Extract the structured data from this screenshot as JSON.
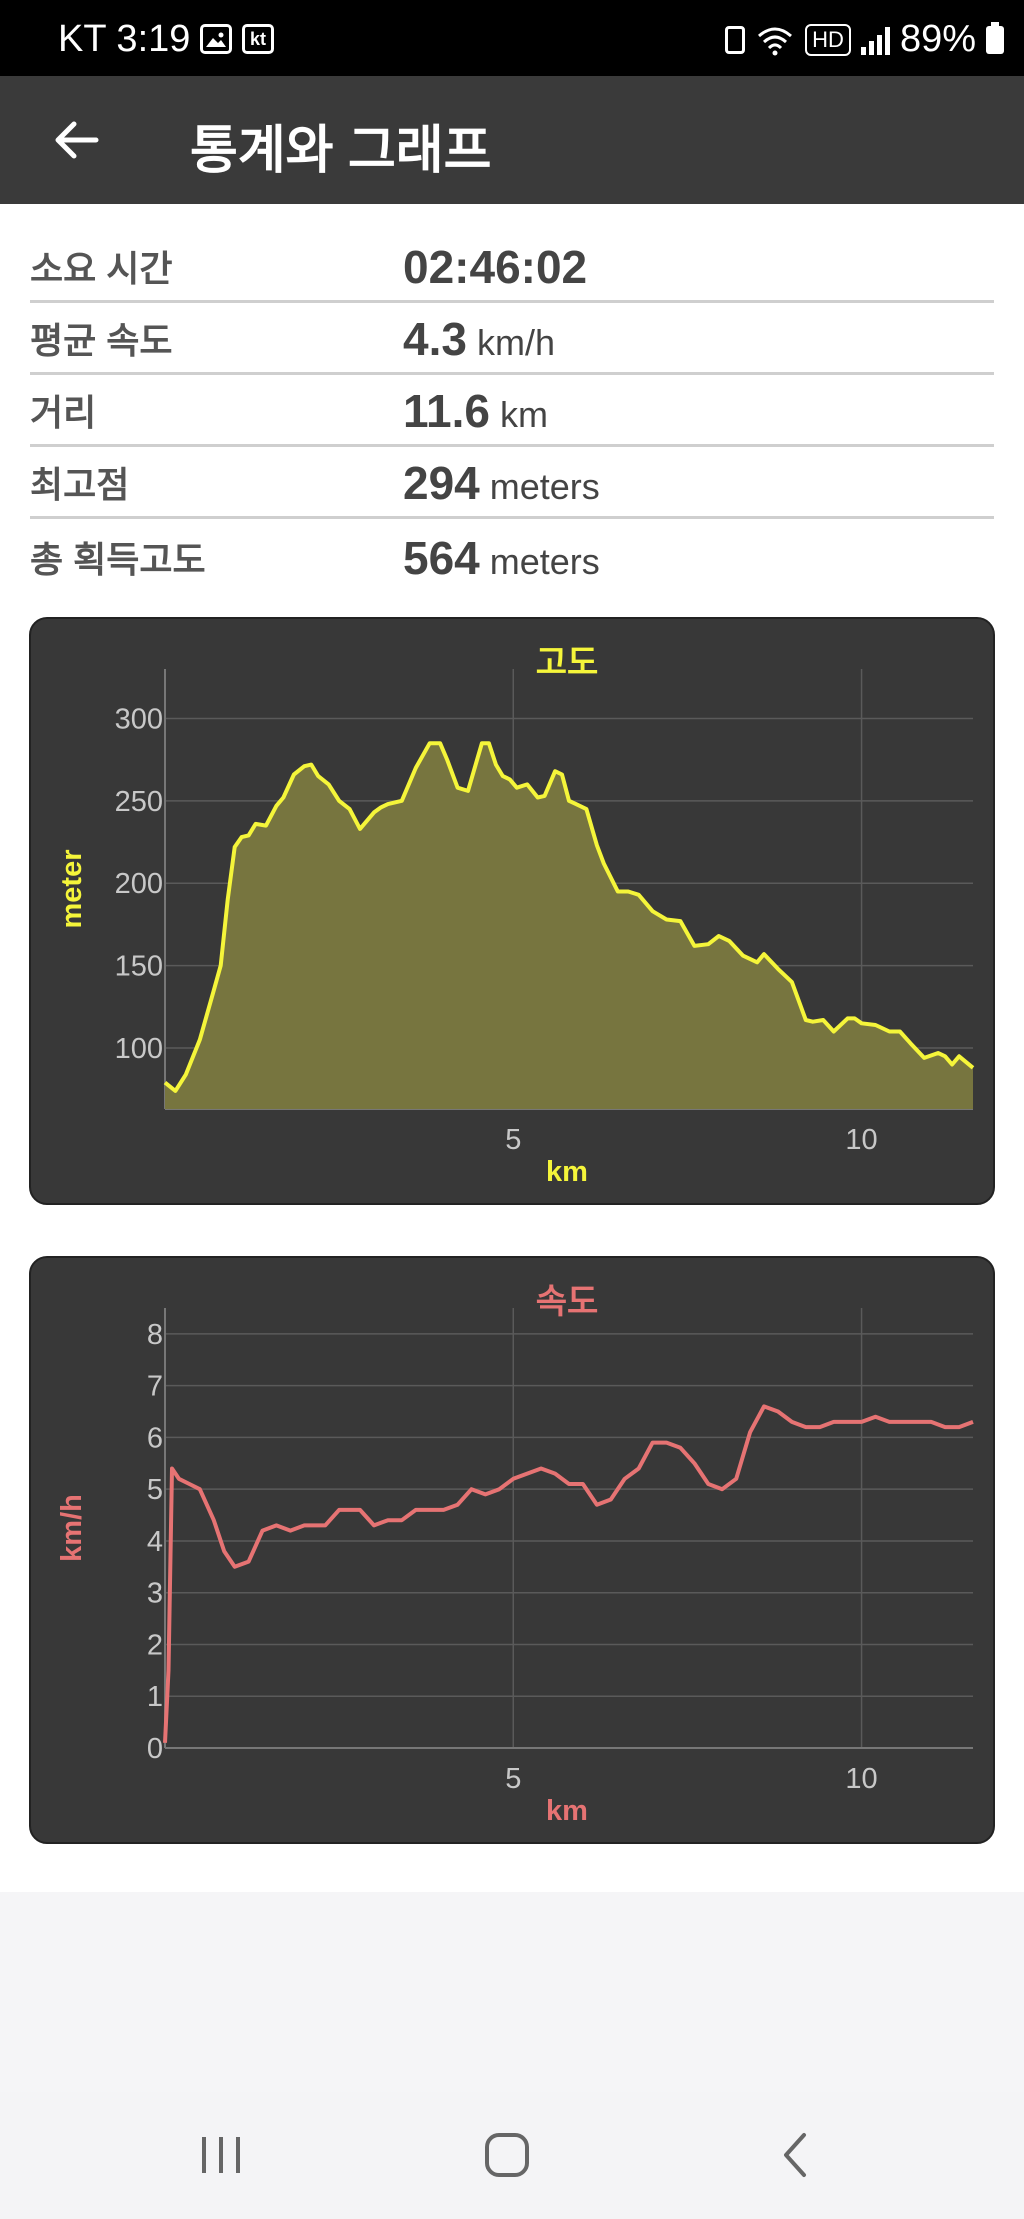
{
  "status_bar": {
    "time": "KT 3:19",
    "hd_label": "HD",
    "kt_label": "kt",
    "battery": "89%",
    "icons": [
      "image-icon",
      "kt-icon",
      "battery-saver-icon",
      "wifi-icon",
      "hd-voice-icon",
      "signal-icon",
      "battery-icon"
    ]
  },
  "app_bar": {
    "title": "통계와 그래프",
    "back_icon": "arrow-left-icon"
  },
  "stats": [
    {
      "label": "소요 시간",
      "value": "02:46:02",
      "unit": ""
    },
    {
      "label": "평균 속도",
      "value": "4.3",
      "unit": "km/h"
    },
    {
      "label": "거리",
      "value": "11.6",
      "unit": "km"
    },
    {
      "label": "최고점",
      "value": "294",
      "unit": "meters"
    },
    {
      "label": "총 획득고도",
      "value": "564",
      "unit": "meters"
    }
  ],
  "colors": {
    "elevation": "#f5f53a",
    "elevation_fill": "#77753f",
    "speed": "#e67373",
    "card_bg": "#383838",
    "axis_text": "#c8c8c8"
  },
  "chart_data": [
    {
      "type": "area",
      "title": "고도",
      "xlabel": "km",
      "ylabel": "meter",
      "xlim": [
        0,
        11.6
      ],
      "ylim": [
        63,
        330
      ],
      "xticks": [
        5,
        10
      ],
      "yticks": [
        100,
        150,
        200,
        250,
        300
      ],
      "grid": true,
      "x": [
        0,
        0.15,
        0.3,
        0.5,
        0.7,
        0.8,
        0.9,
        1.0,
        1.1,
        1.2,
        1.3,
        1.45,
        1.6,
        1.7,
        1.85,
        2.0,
        2.1,
        2.2,
        2.35,
        2.5,
        2.65,
        2.8,
        3.0,
        3.1,
        3.2,
        3.4,
        3.6,
        3.8,
        3.95,
        4.05,
        4.2,
        4.35,
        4.55,
        4.65,
        4.75,
        4.85,
        4.95,
        5.05,
        5.2,
        5.35,
        5.45,
        5.6,
        5.7,
        5.8,
        5.9,
        6.05,
        6.2,
        6.3,
        6.5,
        6.65,
        6.8,
        7.0,
        7.2,
        7.4,
        7.6,
        7.8,
        7.95,
        8.1,
        8.3,
        8.5,
        8.6,
        8.8,
        9.0,
        9.2,
        9.3,
        9.45,
        9.6,
        9.8,
        9.9,
        10.0,
        10.2,
        10.4,
        10.55,
        10.7,
        10.9,
        11.1,
        11.2,
        11.3,
        11.4,
        11.6
      ],
      "values": [
        79,
        74,
        84,
        105,
        135,
        150,
        190,
        222,
        228,
        229,
        236,
        235,
        247,
        252,
        266,
        271,
        272,
        265,
        260,
        250,
        245,
        233,
        243,
        246,
        248,
        250,
        270,
        285,
        285,
        275,
        258,
        256,
        285,
        285,
        272,
        265,
        263,
        258,
        260,
        252,
        253,
        268,
        266,
        250,
        248,
        245,
        223,
        212,
        195,
        195,
        193,
        183,
        178,
        177,
        162,
        163,
        168,
        165,
        156,
        152,
        157,
        148,
        140,
        117,
        116,
        117,
        110,
        118,
        118,
        115,
        114,
        110,
        110,
        103,
        94,
        97,
        95,
        90,
        95,
        88
      ]
    },
    {
      "type": "line",
      "title": "속도",
      "xlabel": "km",
      "ylabel": "km/h",
      "xlim": [
        0,
        11.6
      ],
      "ylim": [
        0,
        8.5
      ],
      "xticks": [
        5,
        10
      ],
      "yticks": [
        0,
        1,
        2,
        3,
        4,
        5,
        6,
        7,
        8
      ],
      "grid": true,
      "x": [
        0,
        0.05,
        0.1,
        0.2,
        0.35,
        0.5,
        0.7,
        0.85,
        1.0,
        1.2,
        1.4,
        1.6,
        1.8,
        2.0,
        2.3,
        2.5,
        2.8,
        3.0,
        3.2,
        3.4,
        3.6,
        3.8,
        4.0,
        4.2,
        4.4,
        4.6,
        4.8,
        5.0,
        5.2,
        5.4,
        5.6,
        5.8,
        6.0,
        6.2,
        6.4,
        6.6,
        6.8,
        7.0,
        7.2,
        7.4,
        7.6,
        7.8,
        8.0,
        8.2,
        8.4,
        8.6,
        8.8,
        9.0,
        9.2,
        9.4,
        9.6,
        9.8,
        10.0,
        10.2,
        10.4,
        10.6,
        10.8,
        11.0,
        11.2,
        11.4,
        11.6
      ],
      "values": [
        0.1,
        1.5,
        5.4,
        5.2,
        5.1,
        5.0,
        4.4,
        3.8,
        3.5,
        3.6,
        4.2,
        4.3,
        4.2,
        4.3,
        4.3,
        4.6,
        4.6,
        4.3,
        4.4,
        4.4,
        4.6,
        4.6,
        4.6,
        4.7,
        5.0,
        4.9,
        5.0,
        5.2,
        5.3,
        5.4,
        5.3,
        5.1,
        5.1,
        4.7,
        4.8,
        5.2,
        5.4,
        5.9,
        5.9,
        5.8,
        5.5,
        5.1,
        5.0,
        5.2,
        6.1,
        6.6,
        6.5,
        6.3,
        6.2,
        6.2,
        6.3,
        6.3,
        6.3,
        6.4,
        6.3,
        6.3,
        6.3,
        6.3,
        6.2,
        6.2,
        6.3
      ]
    }
  ]
}
